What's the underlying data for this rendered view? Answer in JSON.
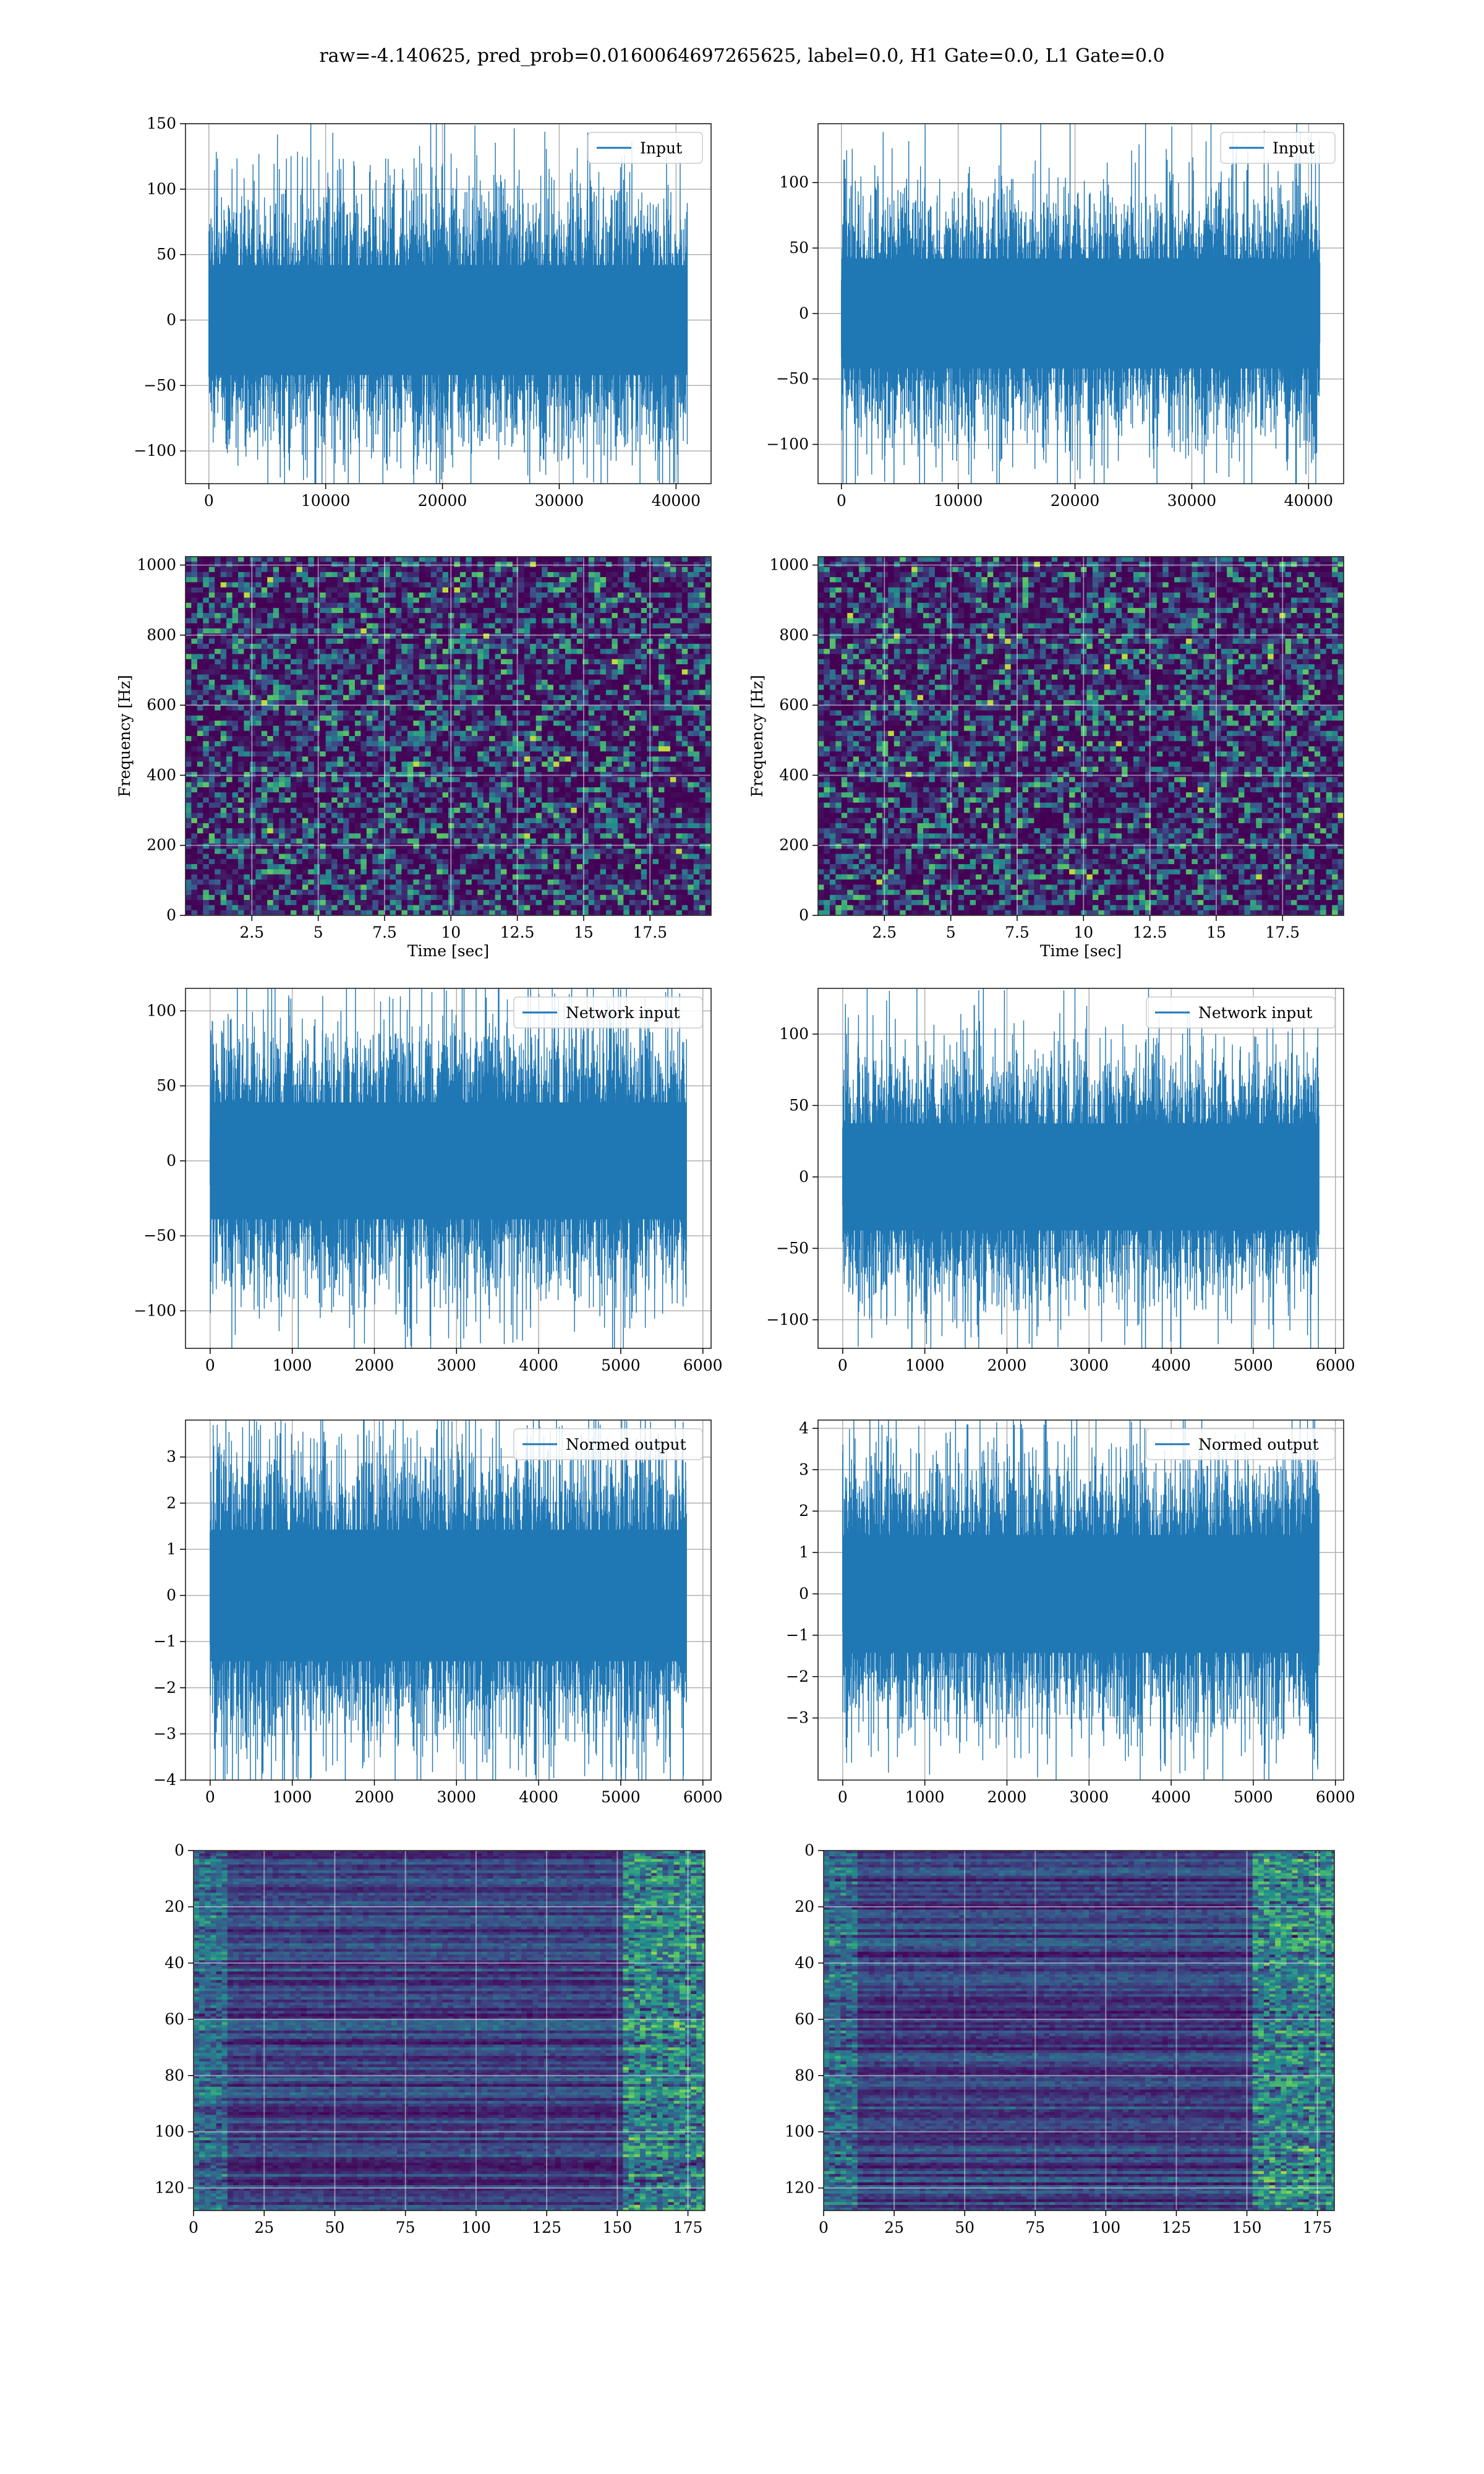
{
  "figure": {
    "suptitle": "raw=-4.140625, pred_prob=0.0160064697265625, label=0.0, H1 Gate=0.0, L1 Gate=0.0"
  },
  "chart_data": [
    {
      "id": "input-h1",
      "type": "line",
      "row": 0,
      "col": 0,
      "legend": "Input",
      "legend_position": "top-right",
      "xlim": [
        -2000,
        43000
      ],
      "ylim": [
        -125,
        150
      ],
      "n_points": 40960,
      "amplitude_std": 28,
      "x_ticks": [
        0,
        10000,
        20000,
        30000,
        40000
      ],
      "y_ticks": [
        -100,
        -50,
        0,
        50,
        100,
        150
      ],
      "grid": true,
      "color": "#1f77b4"
    },
    {
      "id": "input-l1",
      "type": "line",
      "row": 0,
      "col": 1,
      "legend": "Input",
      "legend_position": "top-right",
      "xlim": [
        -2000,
        43000
      ],
      "ylim": [
        -130,
        145
      ],
      "n_points": 40960,
      "amplitude_std": 28,
      "x_ticks": [
        0,
        10000,
        20000,
        30000,
        40000
      ],
      "y_ticks": [
        -100,
        -50,
        0,
        50,
        100
      ],
      "grid": true,
      "color": "#1f77b4"
    },
    {
      "id": "spec-h1",
      "type": "heatmap",
      "row": 1,
      "col": 0,
      "xlabel": "Time [sec]",
      "ylabel": "Frequency [Hz]",
      "xlim": [
        0,
        19.8
      ],
      "ylim": [
        0,
        1024
      ],
      "x_ticks": [
        2.5,
        5.0,
        7.5,
        10.0,
        12.5,
        15.0,
        17.5
      ],
      "y_ticks": [
        0,
        200,
        400,
        600,
        800,
        1000
      ],
      "grid": true,
      "colormap": "viridis"
    },
    {
      "id": "spec-l1",
      "type": "heatmap",
      "row": 1,
      "col": 1,
      "xlabel": "Time [sec]",
      "ylabel": "Frequency [Hz]",
      "xlim": [
        0,
        19.8
      ],
      "ylim": [
        0,
        1024
      ],
      "x_ticks": [
        2.5,
        5.0,
        7.5,
        10.0,
        12.5,
        15.0,
        17.5
      ],
      "y_ticks": [
        0,
        200,
        400,
        600,
        800,
        1000
      ],
      "grid": true,
      "colormap": "viridis"
    },
    {
      "id": "netin-h1",
      "type": "line",
      "row": 2,
      "col": 0,
      "legend": "Network input",
      "legend_position": "top-right",
      "xlim": [
        -300,
        6100
      ],
      "ylim": [
        -125,
        115
      ],
      "n_points": 5800,
      "amplitude_std": 26,
      "x_ticks": [
        0,
        1000,
        2000,
        3000,
        4000,
        5000,
        6000
      ],
      "y_ticks": [
        -100,
        -50,
        0,
        50,
        100
      ],
      "grid": true,
      "color": "#1f77b4"
    },
    {
      "id": "netin-l1",
      "type": "line",
      "row": 2,
      "col": 1,
      "legend": "Network input",
      "legend_position": "top-right",
      "xlim": [
        -300,
        6100
      ],
      "ylim": [
        -120,
        132
      ],
      "n_points": 5800,
      "amplitude_std": 25,
      "x_ticks": [
        0,
        1000,
        2000,
        3000,
        4000,
        5000,
        6000
      ],
      "y_ticks": [
        -100,
        -50,
        0,
        50,
        100
      ],
      "grid": true,
      "color": "#1f77b4"
    },
    {
      "id": "normed-h1",
      "type": "line",
      "row": 3,
      "col": 0,
      "legend": "Normed output",
      "legend_position": "top-right",
      "xlim": [
        -300,
        6100
      ],
      "ylim": [
        -4,
        3.8
      ],
      "n_points": 5800,
      "amplitude_std": 0.95,
      "x_ticks": [
        0,
        1000,
        2000,
        3000,
        4000,
        5000,
        6000
      ],
      "y_ticks": [
        -4,
        -3,
        -2,
        -1,
        0,
        1,
        2,
        3
      ],
      "grid": true,
      "color": "#1f77b4"
    },
    {
      "id": "normed-l1",
      "type": "line",
      "row": 3,
      "col": 1,
      "legend": "Normed output",
      "legend_position": "top-right",
      "xlim": [
        -300,
        6100
      ],
      "ylim": [
        -4.5,
        4.2
      ],
      "n_points": 5800,
      "amplitude_std": 0.95,
      "x_ticks": [
        0,
        1000,
        2000,
        3000,
        4000,
        5000,
        6000
      ],
      "y_ticks": [
        -3,
        -2,
        -1,
        0,
        1,
        2,
        3,
        4
      ],
      "grid": true,
      "color": "#1f77b4"
    },
    {
      "id": "features-h1",
      "type": "heatmap",
      "row": 4,
      "col": 0,
      "xlim": [
        0,
        181
      ],
      "ylim": [
        128,
        0
      ],
      "x_ticks": [
        0,
        25,
        50,
        75,
        100,
        125,
        150,
        175
      ],
      "y_ticks": [
        0,
        20,
        40,
        60,
        80,
        100,
        120
      ],
      "grid": true,
      "colormap": "viridis",
      "rows": 128,
      "cols": 181
    },
    {
      "id": "features-l1",
      "type": "heatmap",
      "row": 4,
      "col": 1,
      "xlim": [
        0,
        181
      ],
      "ylim": [
        128,
        0
      ],
      "x_ticks": [
        0,
        25,
        50,
        75,
        100,
        125,
        150,
        175
      ],
      "y_ticks": [
        0,
        20,
        40,
        60,
        80,
        100,
        120
      ],
      "grid": true,
      "colormap": "viridis",
      "rows": 128,
      "cols": 181
    }
  ]
}
